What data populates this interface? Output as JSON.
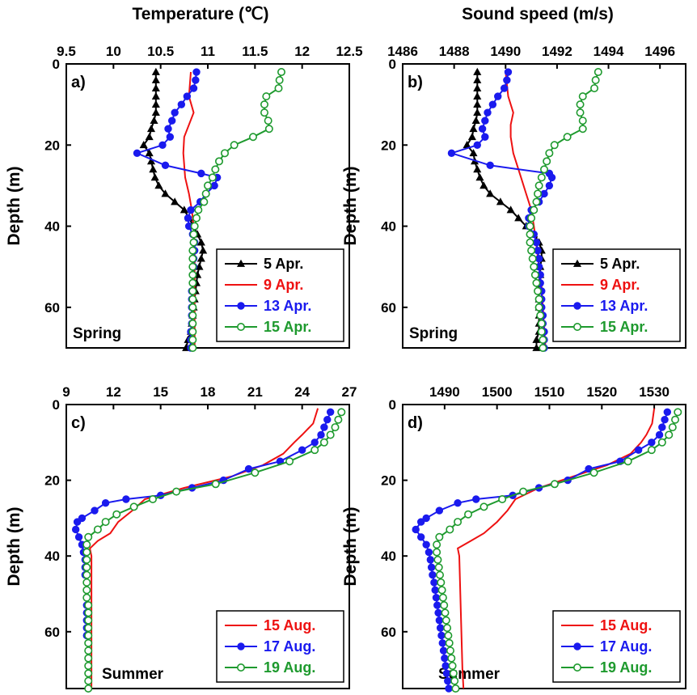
{
  "figure": {
    "top_titles": [
      "Temperature (℃)",
      "Sound speed (m/s)"
    ]
  },
  "chart_data": [
    {
      "type": "line",
      "panel_label": "a)",
      "season": "Spring",
      "xlabel": "Temperature (℃)",
      "ylabel": "Depth (m)",
      "x_axis_position": "top",
      "xlim": [
        9.5,
        12.5
      ],
      "xticks": [
        9.5,
        10,
        10.5,
        11,
        11.5,
        12,
        12.5
      ],
      "ylim": [
        0,
        70
      ],
      "yticks": [
        0,
        20,
        40,
        60
      ],
      "y_inverted": true,
      "grid": false,
      "legend_position": "bottom-right",
      "series": [
        {
          "name": "5 Apr.",
          "color": "#000000",
          "marker": "triangle-filled",
          "depth": [
            2,
            4,
            6,
            8,
            10,
            12,
            14,
            16,
            18,
            20,
            22,
            24,
            26,
            28,
            30,
            32,
            34,
            36,
            38,
            40,
            42,
            44,
            46,
            48,
            50,
            52,
            54,
            56,
            58,
            60,
            62,
            64,
            66,
            68,
            70
          ],
          "values": [
            10.45,
            10.45,
            10.45,
            10.45,
            10.45,
            10.45,
            10.43,
            10.4,
            10.38,
            10.32,
            10.38,
            10.4,
            10.42,
            10.44,
            10.48,
            10.55,
            10.65,
            10.75,
            10.8,
            10.85,
            10.89,
            10.93,
            10.95,
            10.93,
            10.91,
            10.89,
            10.88,
            10.87,
            10.86,
            10.85,
            10.84,
            10.83,
            10.82,
            10.79,
            10.77
          ]
        },
        {
          "name": "9 Apr.",
          "color": "#ee1111",
          "marker": "none",
          "depth": [
            2,
            8,
            12,
            15,
            18,
            22,
            28,
            32,
            36,
            40,
            45,
            50,
            55,
            60,
            65,
            70
          ],
          "values": [
            10.82,
            10.8,
            10.85,
            10.8,
            10.75,
            10.74,
            10.76,
            10.8,
            10.83,
            10.85,
            10.86,
            10.86,
            10.86,
            10.86,
            10.86,
            10.86
          ]
        },
        {
          "name": "13 Apr.",
          "color": "#1a1aee",
          "marker": "circle-filled",
          "depth": [
            2,
            4,
            6,
            8,
            10,
            12,
            14,
            16,
            18,
            20,
            22,
            25,
            27,
            28,
            30,
            32,
            34,
            36,
            38,
            40,
            42,
            44,
            46,
            48,
            50,
            52,
            54,
            56,
            58,
            60,
            62,
            64,
            66,
            68,
            70
          ],
          "values": [
            10.88,
            10.87,
            10.85,
            10.78,
            10.72,
            10.65,
            10.62,
            10.58,
            10.6,
            10.52,
            10.25,
            10.55,
            10.93,
            11.1,
            11.07,
            10.98,
            10.92,
            10.82,
            10.79,
            10.8,
            10.84,
            10.86,
            10.86,
            10.85,
            10.85,
            10.84,
            10.84,
            10.83,
            10.83,
            10.83,
            10.83,
            10.83,
            10.82,
            10.82,
            10.82
          ]
        },
        {
          "name": "15 Apr.",
          "color": "#1e9a2e",
          "marker": "circle-open",
          "depth": [
            2,
            4,
            6,
            8,
            10,
            12,
            14,
            16,
            18,
            20,
            22,
            24,
            26,
            28,
            30,
            32,
            34,
            36,
            38,
            40,
            42,
            44,
            46,
            48,
            50,
            52,
            54,
            56,
            58,
            60,
            62,
            64,
            66,
            68,
            70
          ],
          "values": [
            11.78,
            11.76,
            11.75,
            11.62,
            11.6,
            11.6,
            11.64,
            11.65,
            11.48,
            11.28,
            11.18,
            11.12,
            11.08,
            11.05,
            11.0,
            10.98,
            10.96,
            10.9,
            10.88,
            10.86,
            10.85,
            10.85,
            10.84,
            10.84,
            10.84,
            10.84,
            10.84,
            10.84,
            10.84,
            10.84,
            10.84,
            10.84,
            10.84,
            10.84,
            10.84
          ]
        }
      ]
    },
    {
      "type": "line",
      "panel_label": "b)",
      "season": "Spring",
      "xlabel": "Sound speed (m/s)",
      "ylabel": "Depth (m)",
      "x_axis_position": "top",
      "xlim": [
        1486,
        1497
      ],
      "xticks": [
        1486,
        1488,
        1490,
        1492,
        1494,
        1496
      ],
      "ylim": [
        0,
        70
      ],
      "yticks": [
        0,
        20,
        40,
        60
      ],
      "y_inverted": true,
      "grid": false,
      "legend_position": "bottom-right",
      "series": [
        {
          "name": "5 Apr.",
          "color": "#000000",
          "marker": "triangle-filled",
          "depth": [
            2,
            4,
            6,
            8,
            10,
            12,
            14,
            16,
            18,
            20,
            22,
            24,
            26,
            28,
            30,
            32,
            34,
            36,
            38,
            40,
            42,
            44,
            46,
            48,
            50,
            52,
            54,
            56,
            58,
            60,
            62,
            64,
            66,
            68,
            70
          ],
          "values": [
            1488.9,
            1488.9,
            1488.9,
            1488.9,
            1488.9,
            1488.9,
            1488.85,
            1488.75,
            1488.7,
            1488.5,
            1488.75,
            1488.8,
            1488.9,
            1489.0,
            1489.15,
            1489.4,
            1489.8,
            1490.2,
            1490.5,
            1490.8,
            1491.1,
            1491.3,
            1491.4,
            1491.4,
            1491.35,
            1491.35,
            1491.3,
            1491.3,
            1491.3,
            1491.3,
            1491.3,
            1491.3,
            1491.3,
            1491.2,
            1491.2
          ]
        },
        {
          "name": "9 Apr.",
          "color": "#ee1111",
          "marker": "none",
          "depth": [
            2,
            8,
            12,
            15,
            18,
            22,
            28,
            32,
            36,
            40,
            45,
            50,
            55,
            60,
            65,
            70
          ],
          "values": [
            1490.0,
            1490.1,
            1490.3,
            1490.2,
            1490.2,
            1490.3,
            1490.6,
            1490.8,
            1491.0,
            1491.1,
            1491.2,
            1491.3,
            1491.4,
            1491.45,
            1491.5,
            1491.55
          ]
        },
        {
          "name": "13 Apr.",
          "color": "#1a1aee",
          "marker": "circle-filled",
          "depth": [
            2,
            4,
            6,
            8,
            10,
            12,
            14,
            16,
            18,
            20,
            22,
            25,
            27,
            28,
            30,
            32,
            34,
            36,
            38,
            40,
            42,
            44,
            46,
            48,
            50,
            52,
            54,
            56,
            58,
            60,
            62,
            64,
            66,
            68,
            70
          ],
          "values": [
            1490.1,
            1490.05,
            1489.95,
            1489.7,
            1489.5,
            1489.3,
            1489.2,
            1489.1,
            1489.2,
            1488.9,
            1487.9,
            1489.4,
            1491.7,
            1491.8,
            1491.7,
            1491.5,
            1491.3,
            1491.0,
            1490.9,
            1490.9,
            1491.1,
            1491.2,
            1491.25,
            1491.3,
            1491.3,
            1491.35,
            1491.35,
            1491.4,
            1491.4,
            1491.4,
            1491.45,
            1491.45,
            1491.5,
            1491.5,
            1491.5
          ]
        },
        {
          "name": "15 Apr.",
          "color": "#1e9a2e",
          "marker": "circle-open",
          "depth": [
            2,
            4,
            6,
            8,
            10,
            12,
            14,
            16,
            18,
            20,
            22,
            24,
            26,
            28,
            30,
            32,
            34,
            36,
            38,
            40,
            42,
            44,
            46,
            48,
            50,
            52,
            54,
            56,
            58,
            60,
            62,
            64,
            66,
            68,
            70
          ],
          "values": [
            1493.6,
            1493.5,
            1493.45,
            1493.0,
            1492.9,
            1492.9,
            1493.0,
            1493.0,
            1492.4,
            1491.9,
            1491.7,
            1491.6,
            1491.5,
            1491.4,
            1491.3,
            1491.25,
            1491.2,
            1491.1,
            1491.0,
            1490.95,
            1490.95,
            1490.95,
            1491.0,
            1491.05,
            1491.1,
            1491.15,
            1491.2,
            1491.25,
            1491.3,
            1491.3,
            1491.35,
            1491.4,
            1491.4,
            1491.45,
            1491.45
          ]
        }
      ]
    },
    {
      "type": "line",
      "panel_label": "c)",
      "season": "Summer",
      "xlabel": "",
      "ylabel": "Depth (m)",
      "x_axis_position": "top",
      "xlim": [
        9,
        27
      ],
      "xticks": [
        9,
        12,
        15,
        18,
        21,
        24,
        27
      ],
      "ylim": [
        0,
        75
      ],
      "yticks": [
        0,
        20,
        40,
        60
      ],
      "y_inverted": true,
      "grid": false,
      "legend_position": "bottom-right",
      "series": [
        {
          "name": "15 Aug.",
          "color": "#ee1111",
          "marker": "none",
          "depth": [
            1,
            5,
            8,
            10,
            13,
            16,
            19,
            22,
            25,
            28,
            31,
            34,
            36,
            38,
            40,
            50,
            60,
            70,
            75
          ],
          "values": [
            25.0,
            24.7,
            24.0,
            23.5,
            22.8,
            21.5,
            19.5,
            16.5,
            14.0,
            13.2,
            12.3,
            11.8,
            11.0,
            10.5,
            10.6,
            10.6,
            10.6,
            10.6,
            10.6
          ]
        },
        {
          "name": "17 Aug.",
          "color": "#1a1aee",
          "marker": "circle-filled",
          "depth": [
            2,
            4,
            6,
            8,
            10,
            12,
            15,
            17,
            20,
            22,
            24,
            25,
            26,
            28,
            30,
            31,
            33,
            35,
            37,
            39,
            41,
            43,
            45,
            47,
            49,
            51,
            53,
            55,
            57,
            59,
            61,
            63,
            65,
            67,
            69,
            71,
            73,
            75
          ],
          "values": [
            25.8,
            25.6,
            25.4,
            25.2,
            24.8,
            24.0,
            22.6,
            20.6,
            19.0,
            17.0,
            15.0,
            12.8,
            11.5,
            10.8,
            10.0,
            9.7,
            9.6,
            9.8,
            10.0,
            10.1,
            10.2,
            10.2,
            10.2,
            10.3,
            10.3,
            10.3,
            10.3,
            10.3,
            10.3,
            10.3,
            10.3,
            10.4,
            10.4,
            10.4,
            10.4,
            10.4,
            10.4,
            10.4
          ]
        },
        {
          "name": "19 Aug.",
          "color": "#1e9a2e",
          "marker": "circle-open",
          "depth": [
            2,
            4,
            6,
            8,
            10,
            12,
            15,
            18,
            21,
            23,
            25,
            27,
            29,
            31,
            33,
            35,
            37,
            39,
            41,
            43,
            45,
            47,
            49,
            51,
            53,
            55,
            57,
            59,
            61,
            63,
            65,
            67,
            69,
            71,
            73,
            75
          ],
          "values": [
            26.5,
            26.3,
            26.1,
            25.8,
            25.4,
            24.8,
            23.2,
            21.0,
            18.5,
            16.0,
            14.5,
            13.3,
            12.2,
            11.5,
            11.0,
            10.4,
            10.3,
            10.3,
            10.3,
            10.3,
            10.3,
            10.3,
            10.3,
            10.3,
            10.4,
            10.4,
            10.4,
            10.4,
            10.4,
            10.4,
            10.4,
            10.4,
            10.4,
            10.4,
            10.4,
            10.4
          ]
        }
      ]
    },
    {
      "type": "line",
      "panel_label": "d)",
      "season": "Summer",
      "xlabel": "",
      "ylabel": "Depth (m)",
      "x_axis_position": "top",
      "xlim": [
        1482,
        1536
      ],
      "xticks": [
        1490,
        1500,
        1510,
        1520,
        1530
      ],
      "ylim": [
        0,
        75
      ],
      "yticks": [
        0,
        20,
        40,
        60
      ],
      "y_inverted": true,
      "grid": false,
      "legend_position": "bottom-right",
      "series": [
        {
          "name": "15 Aug.",
          "color": "#ee1111",
          "marker": "none",
          "depth": [
            1,
            5,
            8,
            10,
            13,
            16,
            19,
            22,
            25,
            28,
            31,
            34,
            36,
            38,
            40,
            50,
            60,
            70,
            75
          ],
          "values": [
            1530.0,
            1529.6,
            1528.5,
            1527.5,
            1525.5,
            1521.0,
            1514.5,
            1508.0,
            1503.5,
            1502.0,
            1500.0,
            1497.5,
            1495.0,
            1492.5,
            1492.8,
            1493.0,
            1493.2,
            1493.4,
            1493.6
          ]
        },
        {
          "name": "17 Aug.",
          "color": "#1a1aee",
          "marker": "circle-filled",
          "depth": [
            2,
            4,
            6,
            8,
            10,
            12,
            15,
            17,
            20,
            22,
            24,
            25,
            26,
            28,
            30,
            31,
            33,
            35,
            37,
            39,
            41,
            43,
            45,
            47,
            49,
            51,
            53,
            55,
            57,
            59,
            61,
            63,
            65,
            67,
            69,
            71,
            73,
            75
          ],
          "values": [
            1532.5,
            1532.0,
            1531.5,
            1531.0,
            1529.5,
            1527.0,
            1523.5,
            1517.5,
            1513.5,
            1508.0,
            1503.0,
            1496.0,
            1492.5,
            1489.0,
            1486.5,
            1485.5,
            1484.5,
            1485.5,
            1486.5,
            1487.0,
            1487.3,
            1487.5,
            1487.7,
            1488.0,
            1488.2,
            1488.4,
            1488.6,
            1488.8,
            1489.0,
            1489.2,
            1489.4,
            1489.6,
            1489.8,
            1490.0,
            1490.2,
            1490.4,
            1490.6,
            1490.8
          ]
        },
        {
          "name": "19 Aug.",
          "color": "#1e9a2e",
          "marker": "circle-open",
          "depth": [
            2,
            4,
            6,
            8,
            10,
            12,
            15,
            18,
            21,
            23,
            25,
            27,
            29,
            31,
            33,
            35,
            37,
            39,
            41,
            43,
            45,
            47,
            49,
            51,
            53,
            55,
            57,
            59,
            61,
            63,
            65,
            67,
            69,
            71,
            73,
            75
          ],
          "values": [
            1534.5,
            1534.0,
            1533.5,
            1532.8,
            1531.5,
            1529.5,
            1525.0,
            1518.5,
            1511.0,
            1505.0,
            1501.0,
            1497.5,
            1494.5,
            1492.5,
            1491.0,
            1489.0,
            1488.5,
            1488.5,
            1488.7,
            1488.9,
            1489.1,
            1489.3,
            1489.5,
            1489.7,
            1489.9,
            1490.1,
            1490.3,
            1490.5,
            1490.7,
            1490.9,
            1491.1,
            1491.3,
            1491.5,
            1491.7,
            1491.9,
            1492.1
          ]
        }
      ]
    }
  ]
}
